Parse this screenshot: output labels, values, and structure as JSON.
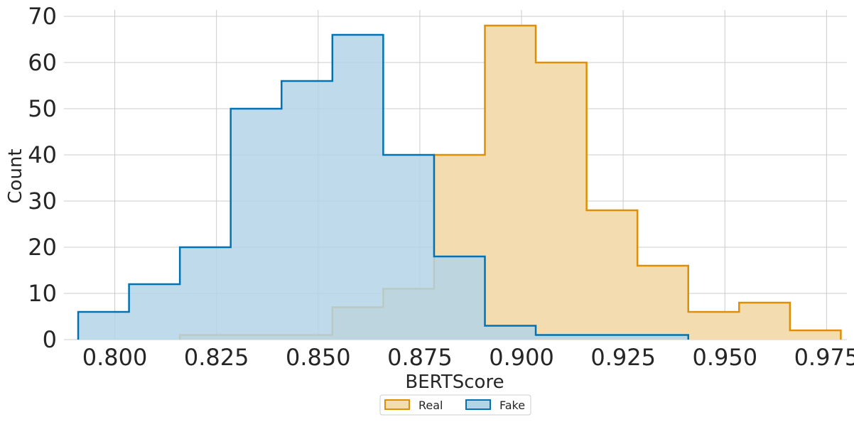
{
  "chart_data": {
    "type": "histogram",
    "xlabel": "BERTScore",
    "ylabel": "Count",
    "xlim": [
      0.7875,
      0.98
    ],
    "ylim": [
      0,
      70
    ],
    "xticks": [
      0.8,
      0.825,
      0.85,
      0.875,
      0.9,
      0.925,
      0.95,
      0.975
    ],
    "xtick_labels": [
      "0.800",
      "0.825",
      "0.850",
      "0.875",
      "0.900",
      "0.925",
      "0.950",
      "0.975"
    ],
    "yticks": [
      0,
      10,
      20,
      30,
      40,
      50,
      60,
      70
    ],
    "ytick_labels": [
      "0",
      "10",
      "20",
      "30",
      "40",
      "50",
      "60",
      "70"
    ],
    "grid": true,
    "legend": {
      "placement": "bottom-center",
      "entries": [
        "Real",
        "Fake"
      ]
    },
    "series": [
      {
        "name": "Real",
        "color": "#de8f05",
        "fill": "#f2dcb0",
        "bin_edges": [
          0.816,
          0.8285,
          0.841,
          0.8535,
          0.866,
          0.8785,
          0.891,
          0.9035,
          0.916,
          0.9285,
          0.941,
          0.9535,
          0.966,
          0.9785
        ],
        "counts": [
          1,
          1,
          1,
          7,
          11,
          40,
          68,
          60,
          28,
          16,
          6,
          8,
          2
        ]
      },
      {
        "name": "Fake",
        "color": "#0173b2",
        "fill": "#b3d4e7",
        "bin_edges": [
          0.791,
          0.8035,
          0.816,
          0.8285,
          0.841,
          0.8535,
          0.866,
          0.8785,
          0.891,
          0.9035,
          0.916,
          0.9285,
          0.941
        ],
        "counts": [
          6,
          12,
          20,
          50,
          56,
          66,
          40,
          18,
          3,
          1,
          1,
          1
        ]
      }
    ]
  }
}
